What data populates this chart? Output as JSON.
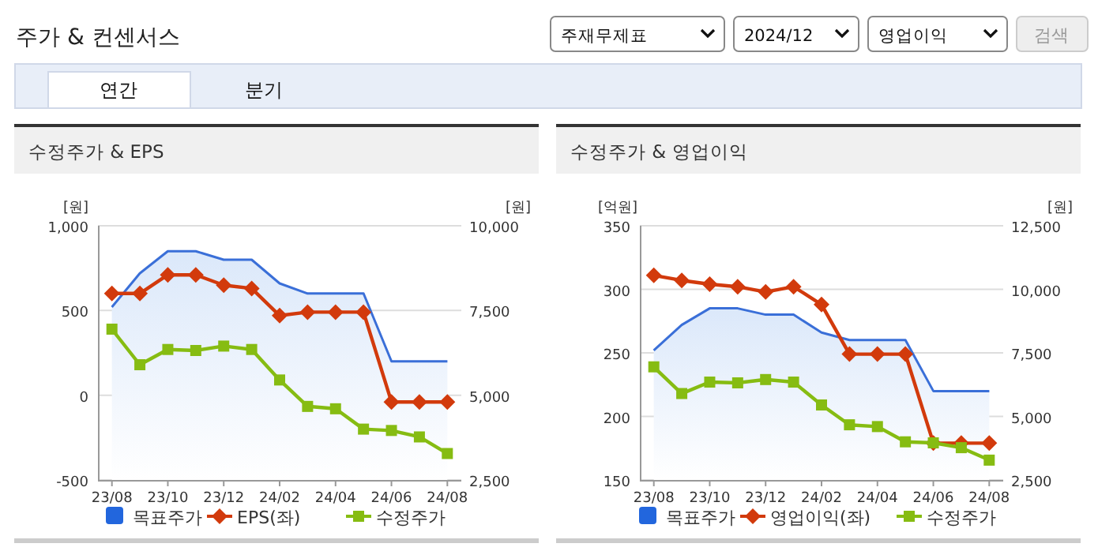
{
  "chart_data": [
    {
      "type": "other",
      "title": "주가 & 컨센서스",
      "annotations": [
        "주재무제표",
        "2024/12",
        "영업이익",
        "검색",
        "연간",
        "분기"
      ]
    },
    {
      "type": "line",
      "title": "수정주가 & EPS",
      "ylabel": "[원]",
      "y2label": "[원]",
      "grid": "y",
      "legend": "bottom",
      "categories": [
        "23/08",
        null,
        "23/10",
        null,
        "23/12",
        null,
        "24/02",
        null,
        "24/04",
        null,
        "24/06",
        null,
        "24/08"
      ],
      "ylim": [
        -500,
        1000
      ],
      "yticks": [
        -500,
        0,
        500,
        {
          "value": 1000,
          "label": "1,000"
        }
      ],
      "y2lim": [
        2500,
        10000
      ],
      "y2ticks": [
        {
          "value": 2500,
          "label": "2,500"
        },
        {
          "value": 5000,
          "label": "5,000"
        },
        {
          "value": 7500,
          "label": "7,500"
        },
        {
          "value": 10000,
          "label": "10,000"
        }
      ],
      "series": [
        {
          "name": "목표주가",
          "type": "area",
          "axis": "y2",
          "color": "#3a6fd8",
          "marker": "none",
          "values": [
            7600,
            8600,
            9250,
            9250,
            9000,
            9000,
            8300,
            8000,
            8000,
            8000,
            6000,
            6000,
            6000
          ]
        },
        {
          "name": "EPS(좌)",
          "type": "line",
          "color": "#d23a0c",
          "marker": "diamond",
          "values": [
            600,
            600,
            710,
            710,
            650,
            630,
            470,
            490,
            490,
            490,
            -40,
            -40,
            -40
          ]
        },
        {
          "name": "수정주가",
          "type": "line",
          "axis": "y2",
          "color": "#86bc12",
          "marker": "square",
          "values": [
            6950,
            5900,
            6350,
            6320,
            6450,
            6350,
            5450,
            4670,
            4600,
            4000,
            3960,
            3770,
            3280
          ]
        }
      ]
    },
    {
      "type": "line",
      "title": "수정주가 & 영업이익",
      "ylabel": "[억원]",
      "y2label": "[원]",
      "grid": "y",
      "legend": "bottom",
      "categories": [
        "23/08",
        null,
        "23/10",
        null,
        "23/12",
        null,
        "24/02",
        null,
        "24/04",
        null,
        "24/06",
        null,
        "24/08"
      ],
      "ylim": [
        150,
        350
      ],
      "yticks": [
        150,
        200,
        250,
        300,
        350
      ],
      "y2lim": [
        2500,
        12500
      ],
      "y2ticks": [
        {
          "value": 2500,
          "label": "2,500"
        },
        {
          "value": 5000,
          "label": "5,000"
        },
        {
          "value": 7500,
          "label": "7,500"
        },
        {
          "value": 10000,
          "label": "10,000"
        },
        {
          "value": 12500,
          "label": "12,500"
        }
      ],
      "series": [
        {
          "name": "목표주가",
          "type": "area",
          "axis": "y2",
          "color": "#3a6fd8",
          "marker": "none",
          "values": [
            7600,
            8600,
            9250,
            9250,
            9000,
            9000,
            8300,
            8000,
            8000,
            8000,
            6000,
            6000,
            6000
          ]
        },
        {
          "name": "영업이익(좌)",
          "type": "line",
          "color": "#d23a0c",
          "marker": "diamond",
          "values": [
            311,
            307,
            304,
            302,
            298,
            302,
            288,
            249,
            249,
            249,
            179,
            179,
            179
          ]
        },
        {
          "name": "수정주가",
          "type": "line",
          "axis": "y2",
          "color": "#86bc12",
          "marker": "square",
          "values": [
            6950,
            5900,
            6350,
            6320,
            6450,
            6350,
            5450,
            4670,
            4600,
            4000,
            3960,
            3770,
            3280
          ]
        }
      ]
    }
  ]
}
